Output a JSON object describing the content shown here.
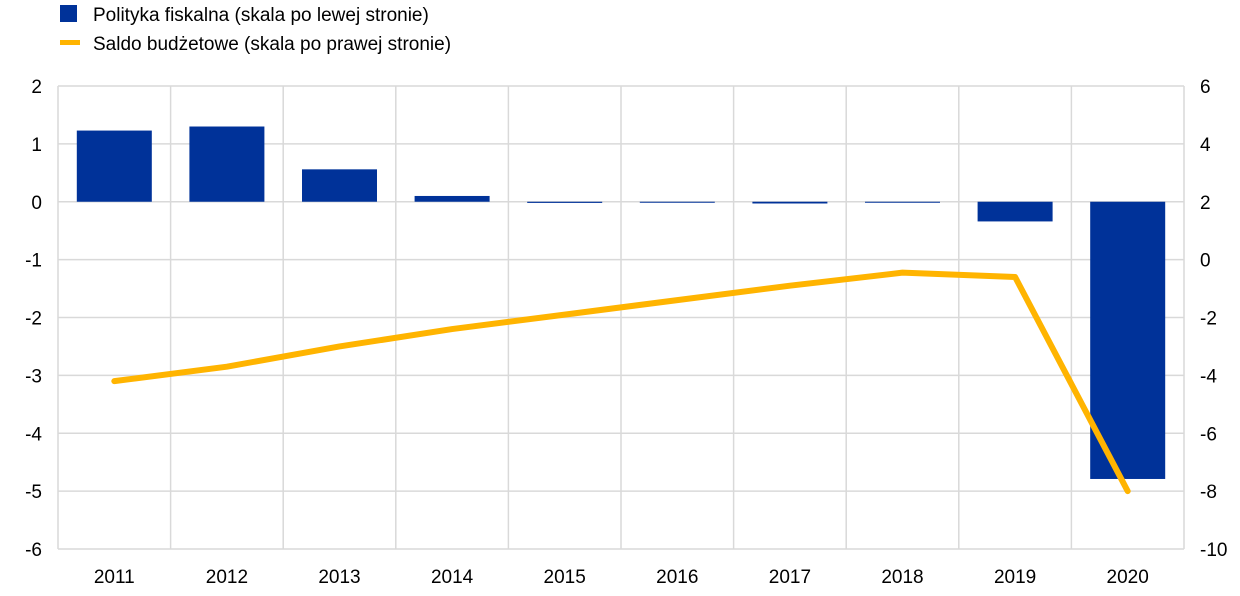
{
  "chart_data": {
    "type": "bar+line",
    "categories": [
      "2011",
      "2012",
      "2013",
      "2014",
      "2015",
      "2016",
      "2017",
      "2018",
      "2019",
      "2020"
    ],
    "series": [
      {
        "name": "Polityka fiskalna (skala po lewej stronie)",
        "type": "bar",
        "axis": "left",
        "color": "#003299",
        "values": [
          1.23,
          1.3,
          0.56,
          0.1,
          -0.02,
          -0.01,
          -0.03,
          -0.01,
          -0.34,
          -4.79
        ]
      },
      {
        "name": "Saldo budżetowe (skala po prawej stronie)",
        "type": "line",
        "axis": "right",
        "color": "#FFB400",
        "values": [
          -4.2,
          -3.7,
          -3.0,
          -2.4,
          -1.9,
          -1.4,
          -0.9,
          -0.45,
          -0.6,
          -8.0
        ]
      }
    ],
    "left_axis": {
      "range": [
        -6,
        2
      ],
      "ticks": [
        "2",
        "1",
        "0",
        "-1",
        "-2",
        "-3",
        "-4",
        "-5",
        "-6"
      ]
    },
    "right_axis": {
      "range": [
        -10,
        6
      ],
      "ticks": [
        "6",
        "4",
        "2",
        "0",
        "-2",
        "-4",
        "-6",
        "-8",
        "-10"
      ]
    },
    "grid": true,
    "legend_placement": "top-left"
  }
}
